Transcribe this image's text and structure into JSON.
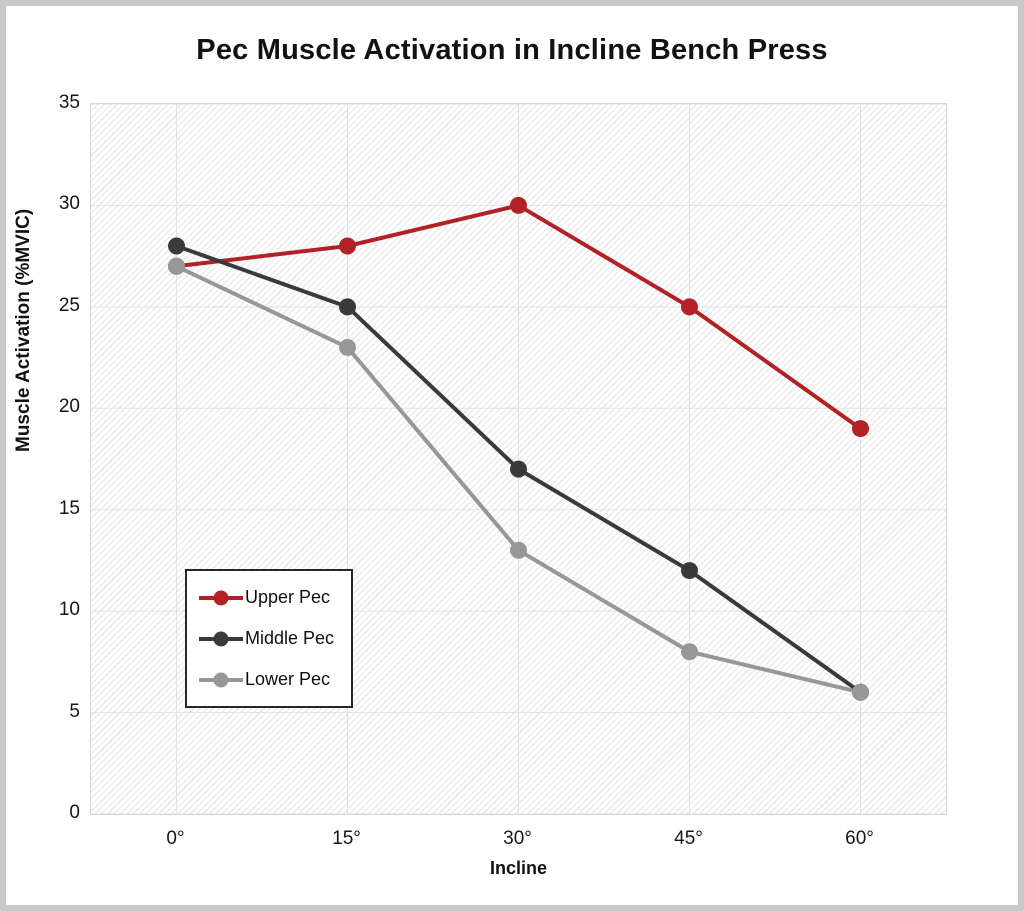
{
  "page": {
    "background": "#ffffff",
    "frame_border_color": "#c9c9c9"
  },
  "chart_data": {
    "type": "line",
    "title": "Pec Muscle Activation in Incline Bench Press",
    "xlabel": "Incline",
    "ylabel": "Muscle Activation (%MVIC)",
    "categories": [
      "0°",
      "15°",
      "30°",
      "45°",
      "60°"
    ],
    "series": [
      {
        "name": "Upper Pec",
        "color": "#b22126",
        "values": [
          27,
          28,
          30,
          25,
          19
        ]
      },
      {
        "name": "Middle Pec",
        "color": "#3a3a3a",
        "values": [
          28,
          25,
          17,
          12,
          6
        ]
      },
      {
        "name": "Lower Pec",
        "color": "#979797",
        "values": [
          27,
          23,
          13,
          8,
          6
        ]
      }
    ],
    "ylim": [
      0,
      35
    ],
    "yticks": [
      0,
      5,
      10,
      15,
      20,
      25,
      30,
      35
    ],
    "grid": true,
    "gridline_color": "#e2e2e2",
    "plot_background": "diagonal-hatch",
    "legend_position": "inside lower-left",
    "marker": "circle",
    "marker_radius": 8.5,
    "line_width": 4
  }
}
